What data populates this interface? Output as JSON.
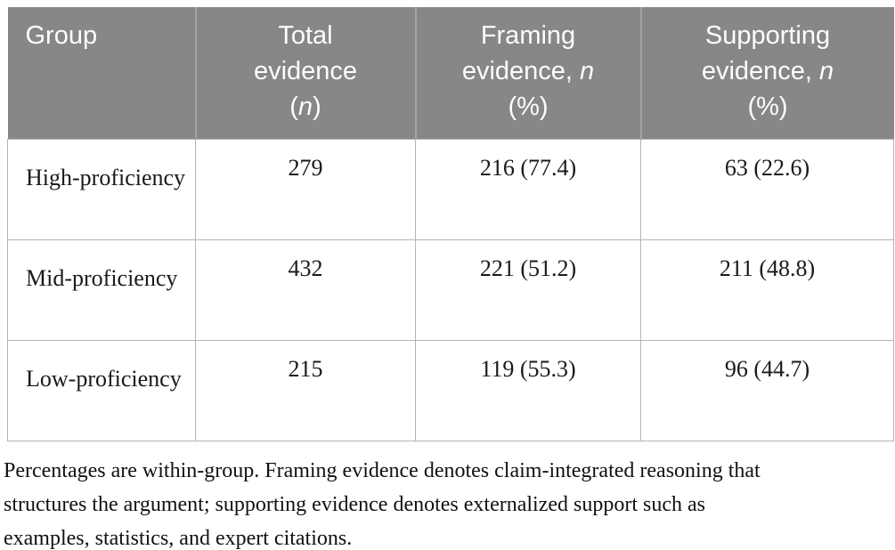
{
  "table": {
    "headers": [
      {
        "lines": [
          {
            "pre": "Group",
            "italic": "",
            "post": ""
          }
        ]
      },
      {
        "lines": [
          {
            "pre": "Total",
            "italic": "",
            "post": ""
          },
          {
            "pre": "evidence",
            "italic": "",
            "post": ""
          },
          {
            "pre": "(",
            "italic": "n",
            "post": ")"
          }
        ]
      },
      {
        "lines": [
          {
            "pre": "Framing",
            "italic": "",
            "post": ""
          },
          {
            "pre": "evidence, ",
            "italic": "n",
            "post": ""
          },
          {
            "pre": "(%)",
            "italic": "",
            "post": ""
          }
        ]
      },
      {
        "lines": [
          {
            "pre": "Supporting",
            "italic": "",
            "post": ""
          },
          {
            "pre": "evidence, ",
            "italic": "n",
            "post": ""
          },
          {
            "pre": "(%)",
            "italic": "",
            "post": ""
          }
        ]
      }
    ],
    "rows": [
      {
        "group": "High-proficiency",
        "total": "279",
        "framing": "216 (77.4)",
        "supporting": "63 (22.6)"
      },
      {
        "group": "Mid-proficiency",
        "total": "432",
        "framing": "221 (51.2)",
        "supporting": "211 (48.8)"
      },
      {
        "group": "Low-proficiency",
        "total": "215",
        "framing": "119 (55.3)",
        "supporting": "96 (44.7)"
      }
    ]
  },
  "note_lines": [
    "Percentages are within-group. Framing evidence denotes claim-integrated reasoning that",
    "structures the argument; supporting evidence denotes externalized support such as",
    "examples, statistics, and expert citations."
  ],
  "colors": {
    "header_bg": "#878787",
    "header_text": "#fdfdfd",
    "header_divider": "#a4a4a4",
    "body_border": "#b5b5b5",
    "text": "#1a1a1a"
  }
}
